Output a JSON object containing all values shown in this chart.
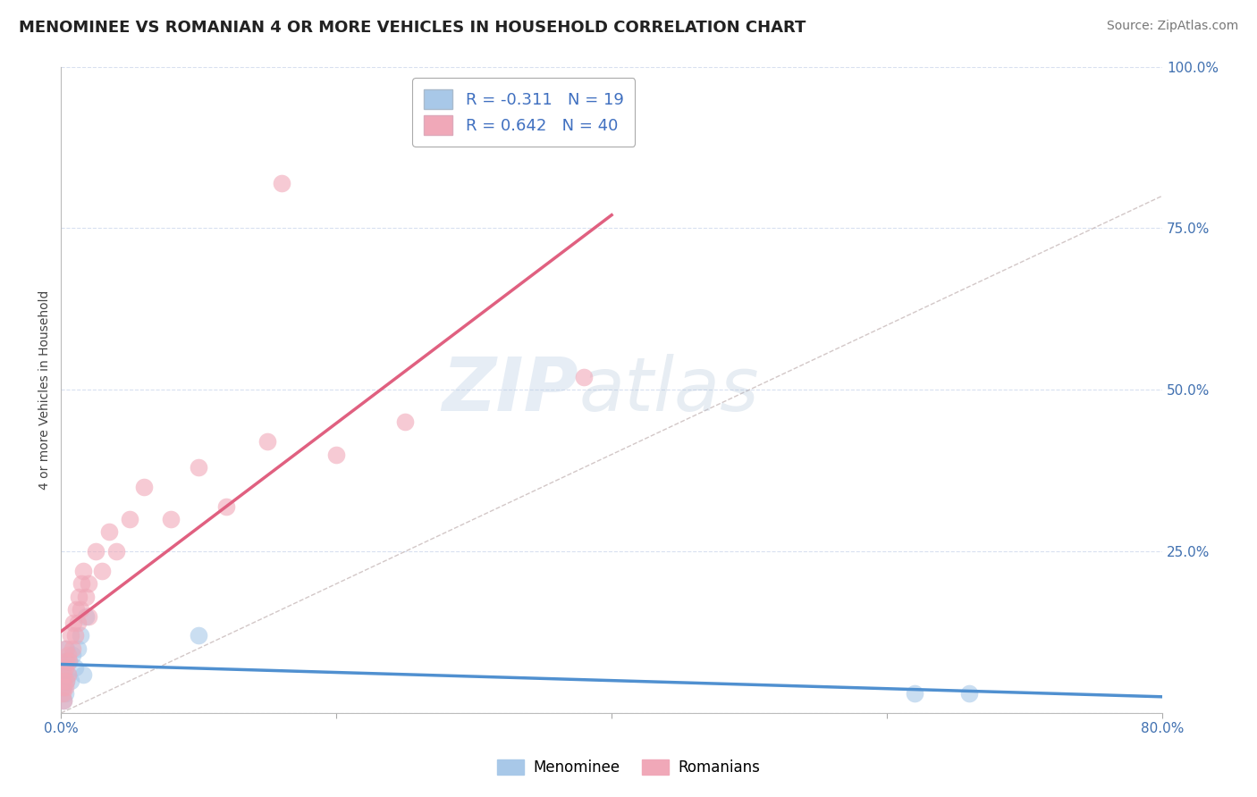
{
  "title": "MENOMINEE VS ROMANIAN 4 OR MORE VEHICLES IN HOUSEHOLD CORRELATION CHART",
  "source": "Source: ZipAtlas.com",
  "ylabel": "4 or more Vehicles in Household",
  "xlim": [
    0,
    0.8
  ],
  "ylim": [
    0,
    1.0
  ],
  "menominee_R": -0.311,
  "menominee_N": 19,
  "romanian_R": 0.642,
  "romanian_N": 40,
  "menominee_color": "#a8c8e8",
  "romanian_color": "#f0a8b8",
  "menominee_line_color": "#5090d0",
  "romanian_line_color": "#e06080",
  "diag_line_color": "#c0b0b0",
  "menominee_x": [
    0.001,
    0.002,
    0.002,
    0.003,
    0.003,
    0.004,
    0.004,
    0.005,
    0.006,
    0.007,
    0.008,
    0.01,
    0.012,
    0.014,
    0.016,
    0.018,
    0.1,
    0.62,
    0.66
  ],
  "menominee_y": [
    0.04,
    0.02,
    0.06,
    0.03,
    0.08,
    0.05,
    0.1,
    0.06,
    0.08,
    0.05,
    0.09,
    0.07,
    0.1,
    0.12,
    0.06,
    0.15,
    0.12,
    0.03,
    0.03
  ],
  "romanian_x": [
    0.001,
    0.001,
    0.002,
    0.002,
    0.002,
    0.003,
    0.003,
    0.003,
    0.004,
    0.004,
    0.005,
    0.005,
    0.006,
    0.007,
    0.008,
    0.009,
    0.01,
    0.011,
    0.012,
    0.013,
    0.014,
    0.015,
    0.016,
    0.018,
    0.02,
    0.025,
    0.03,
    0.035,
    0.04,
    0.05,
    0.06,
    0.08,
    0.1,
    0.12,
    0.15,
    0.16,
    0.2,
    0.25,
    0.02,
    0.38
  ],
  "romanian_y": [
    0.03,
    0.05,
    0.02,
    0.04,
    0.06,
    0.04,
    0.07,
    0.1,
    0.05,
    0.08,
    0.06,
    0.09,
    0.08,
    0.12,
    0.1,
    0.14,
    0.12,
    0.16,
    0.14,
    0.18,
    0.16,
    0.2,
    0.22,
    0.18,
    0.2,
    0.25,
    0.22,
    0.28,
    0.25,
    0.3,
    0.35,
    0.3,
    0.38,
    0.32,
    0.42,
    0.82,
    0.4,
    0.45,
    0.15,
    0.52
  ],
  "background_color": "#ffffff",
  "grid_color": "#d8e0f0",
  "title_fontsize": 13,
  "axis_label_fontsize": 10,
  "tick_fontsize": 11,
  "legend_fontsize": 13,
  "source_fontsize": 10
}
